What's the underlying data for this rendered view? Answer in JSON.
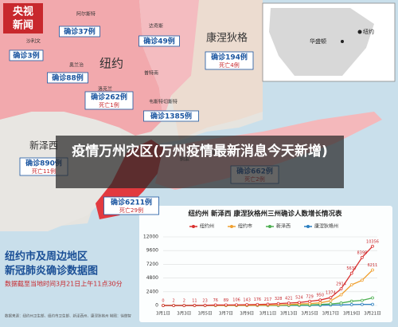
{
  "header": {
    "logo_line1": "央视",
    "logo_line2": "新闻"
  },
  "overlay_title": "疫情万州灾区(万州疫情最新消息今天新增)",
  "regions": [
    "纽约",
    "康涅狄格",
    "新泽西"
  ],
  "counties": [
    "阿尔斯特",
    "沙利文",
    "达奇斯",
    "奥兰治",
    "普特南",
    "洛克兰",
    "韦斯特切斯特",
    "萨福克",
    "纳索"
  ],
  "labels": [
    {
      "cases": "确诊37例"
    },
    {
      "cases": "确诊3例"
    },
    {
      "cases": "确诊49例"
    },
    {
      "cases": "确诊88例"
    },
    {
      "cases": "确诊262例",
      "deaths": "死亡1例"
    },
    {
      "cases": "确诊194例",
      "deaths": "死亡4例"
    },
    {
      "cases": "确诊1385例"
    },
    {
      "cases": "确诊890例",
      "deaths": "死亡11例"
    },
    {
      "cases": "确诊662例",
      "deaths": "死亡2例"
    },
    {
      "cases": "确诊6211例",
      "deaths": "死亡29例"
    }
  ],
  "inset": {
    "city1": "纽约",
    "city2": "华盛顿"
  },
  "footer": {
    "title_line1": "纽约市及周边地区",
    "title_line2": "新冠肺炎确诊数据图",
    "note": "数据截至当地时间3月21日上午11点30分",
    "source": "数据来源：纽约州卫生部、纽约市卫生部、新泽西州、康涅狄格州  制图：徐傲智"
  },
  "chart_data": {
    "type": "line",
    "title": "纽约州 新泽西 康涅狄格州三州确诊人数增长情况表",
    "categories": [
      "3月1日",
      null,
      "3月3日",
      null,
      "3月5日",
      null,
      "3月7日",
      null,
      "3月9日",
      null,
      "3月11日",
      null,
      "3月13日",
      null,
      "3月15日",
      null,
      "3月17日",
      null,
      "3月19日",
      null,
      "3月21日"
    ],
    "ylim": [
      0,
      12000
    ],
    "yticks": [
      0,
      2400,
      4800,
      7200,
      9600,
      12000
    ],
    "grid": true,
    "series": [
      {
        "name": "纽约州",
        "color": "#d9302f",
        "values": [
          0,
          2,
          2,
          11,
          23,
          76,
          89,
          106,
          143,
          176,
          217,
          328,
          421,
          524,
          729,
          950,
          1374,
          2914,
          5637,
          8398,
          10356
        ]
      },
      {
        "name": "纽约市",
        "color": "#f0a030",
        "values": [
          0,
          0,
          0,
          1,
          4,
          11,
          12,
          13,
          19,
          36,
          52,
          95,
          154,
          269,
          329,
          463,
          814,
          1871,
          3615,
          4408,
          6211
        ]
      },
      {
        "name": "新泽西",
        "color": "#4caf50",
        "values": [
          0,
          0,
          0,
          1,
          2,
          4,
          6,
          6,
          11,
          15,
          23,
          29,
          50,
          69,
          98,
          178,
          267,
          427,
          742,
          890,
          1327
        ]
      },
      {
        "name": "康涅狄格州",
        "color": "#2a7fc0",
        "values": [
          0,
          0,
          0,
          0,
          0,
          0,
          0,
          0,
          1,
          2,
          3,
          5,
          11,
          20,
          26,
          41,
          68,
          96,
          159,
          194,
          194
        ]
      }
    ]
  }
}
